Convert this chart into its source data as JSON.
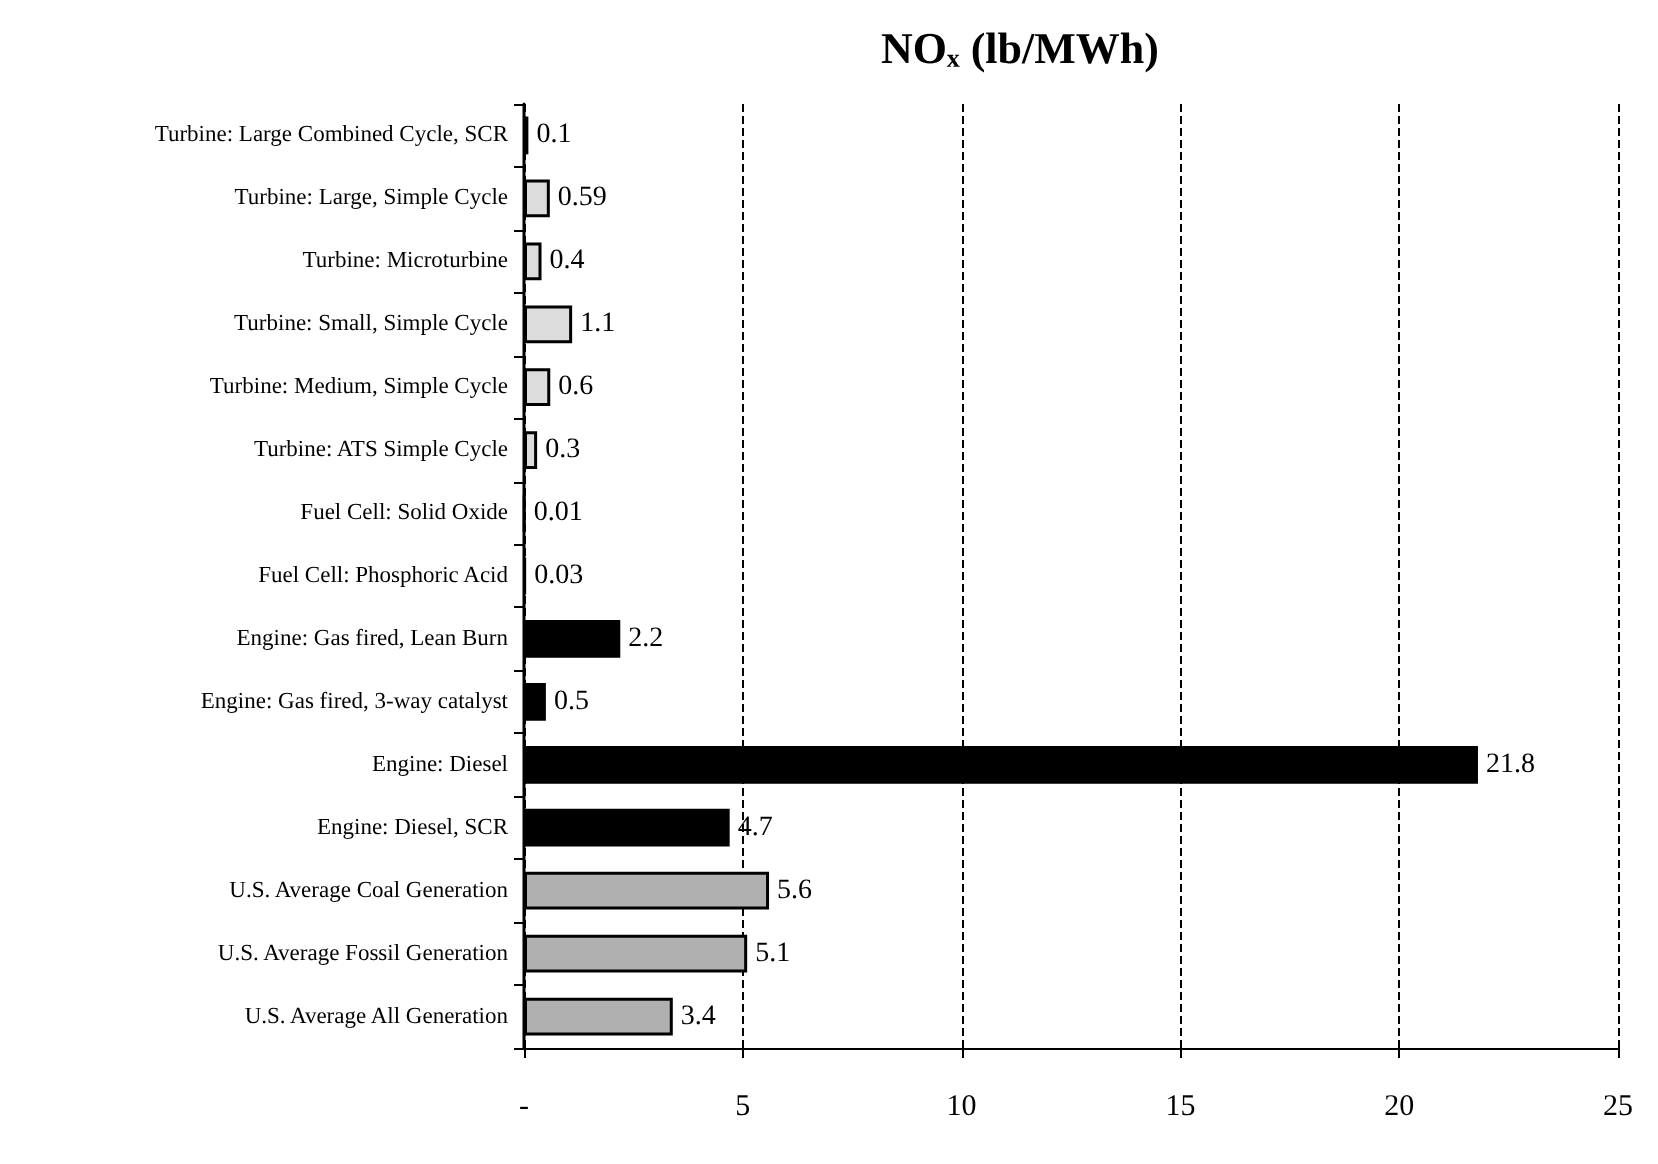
{
  "chart_data": {
    "type": "bar",
    "orientation": "horizontal",
    "title": "NOₓ (lb/MWh)",
    "categories": [
      "Turbine: Large Combined Cycle, SCR",
      "Turbine: Large, Simple Cycle",
      "Turbine: Microturbine",
      "Turbine: Small, Simple Cycle",
      "Turbine: Medium, Simple Cycle",
      "Turbine: ATS Simple Cycle",
      "Fuel Cell: Solid Oxide",
      "Fuel Cell: Phosphoric Acid",
      "Engine: Gas fired, Lean Burn",
      "Engine: Gas fired, 3-way catalyst",
      "Engine: Diesel",
      "Engine: Diesel, SCR",
      "U.S. Average Coal Generation",
      "U.S. Average Fossil Generation",
      "U.S. Average All Generation"
    ],
    "values": [
      0.1,
      0.59,
      0.4,
      1.1,
      0.6,
      0.3,
      0.01,
      0.03,
      2.2,
      0.5,
      21.8,
      4.7,
      5.6,
      5.1,
      3.4
    ],
    "colors": [
      "#dcdcdc",
      "#dcdcdc",
      "#dcdcdc",
      "#dcdcdc",
      "#dcdcdc",
      "#dcdcdc",
      "#dcdcdc",
      "#dcdcdc",
      "#000000",
      "#000000",
      "#000000",
      "#000000",
      "#b0b0b0",
      "#b0b0b0",
      "#b0b0b0"
    ],
    "data_labels": true,
    "xlim": [
      0,
      25
    ],
    "xticks": [
      {
        "value": 0,
        "label": "-"
      },
      5,
      10,
      15,
      20,
      25
    ],
    "grid": "x"
  }
}
